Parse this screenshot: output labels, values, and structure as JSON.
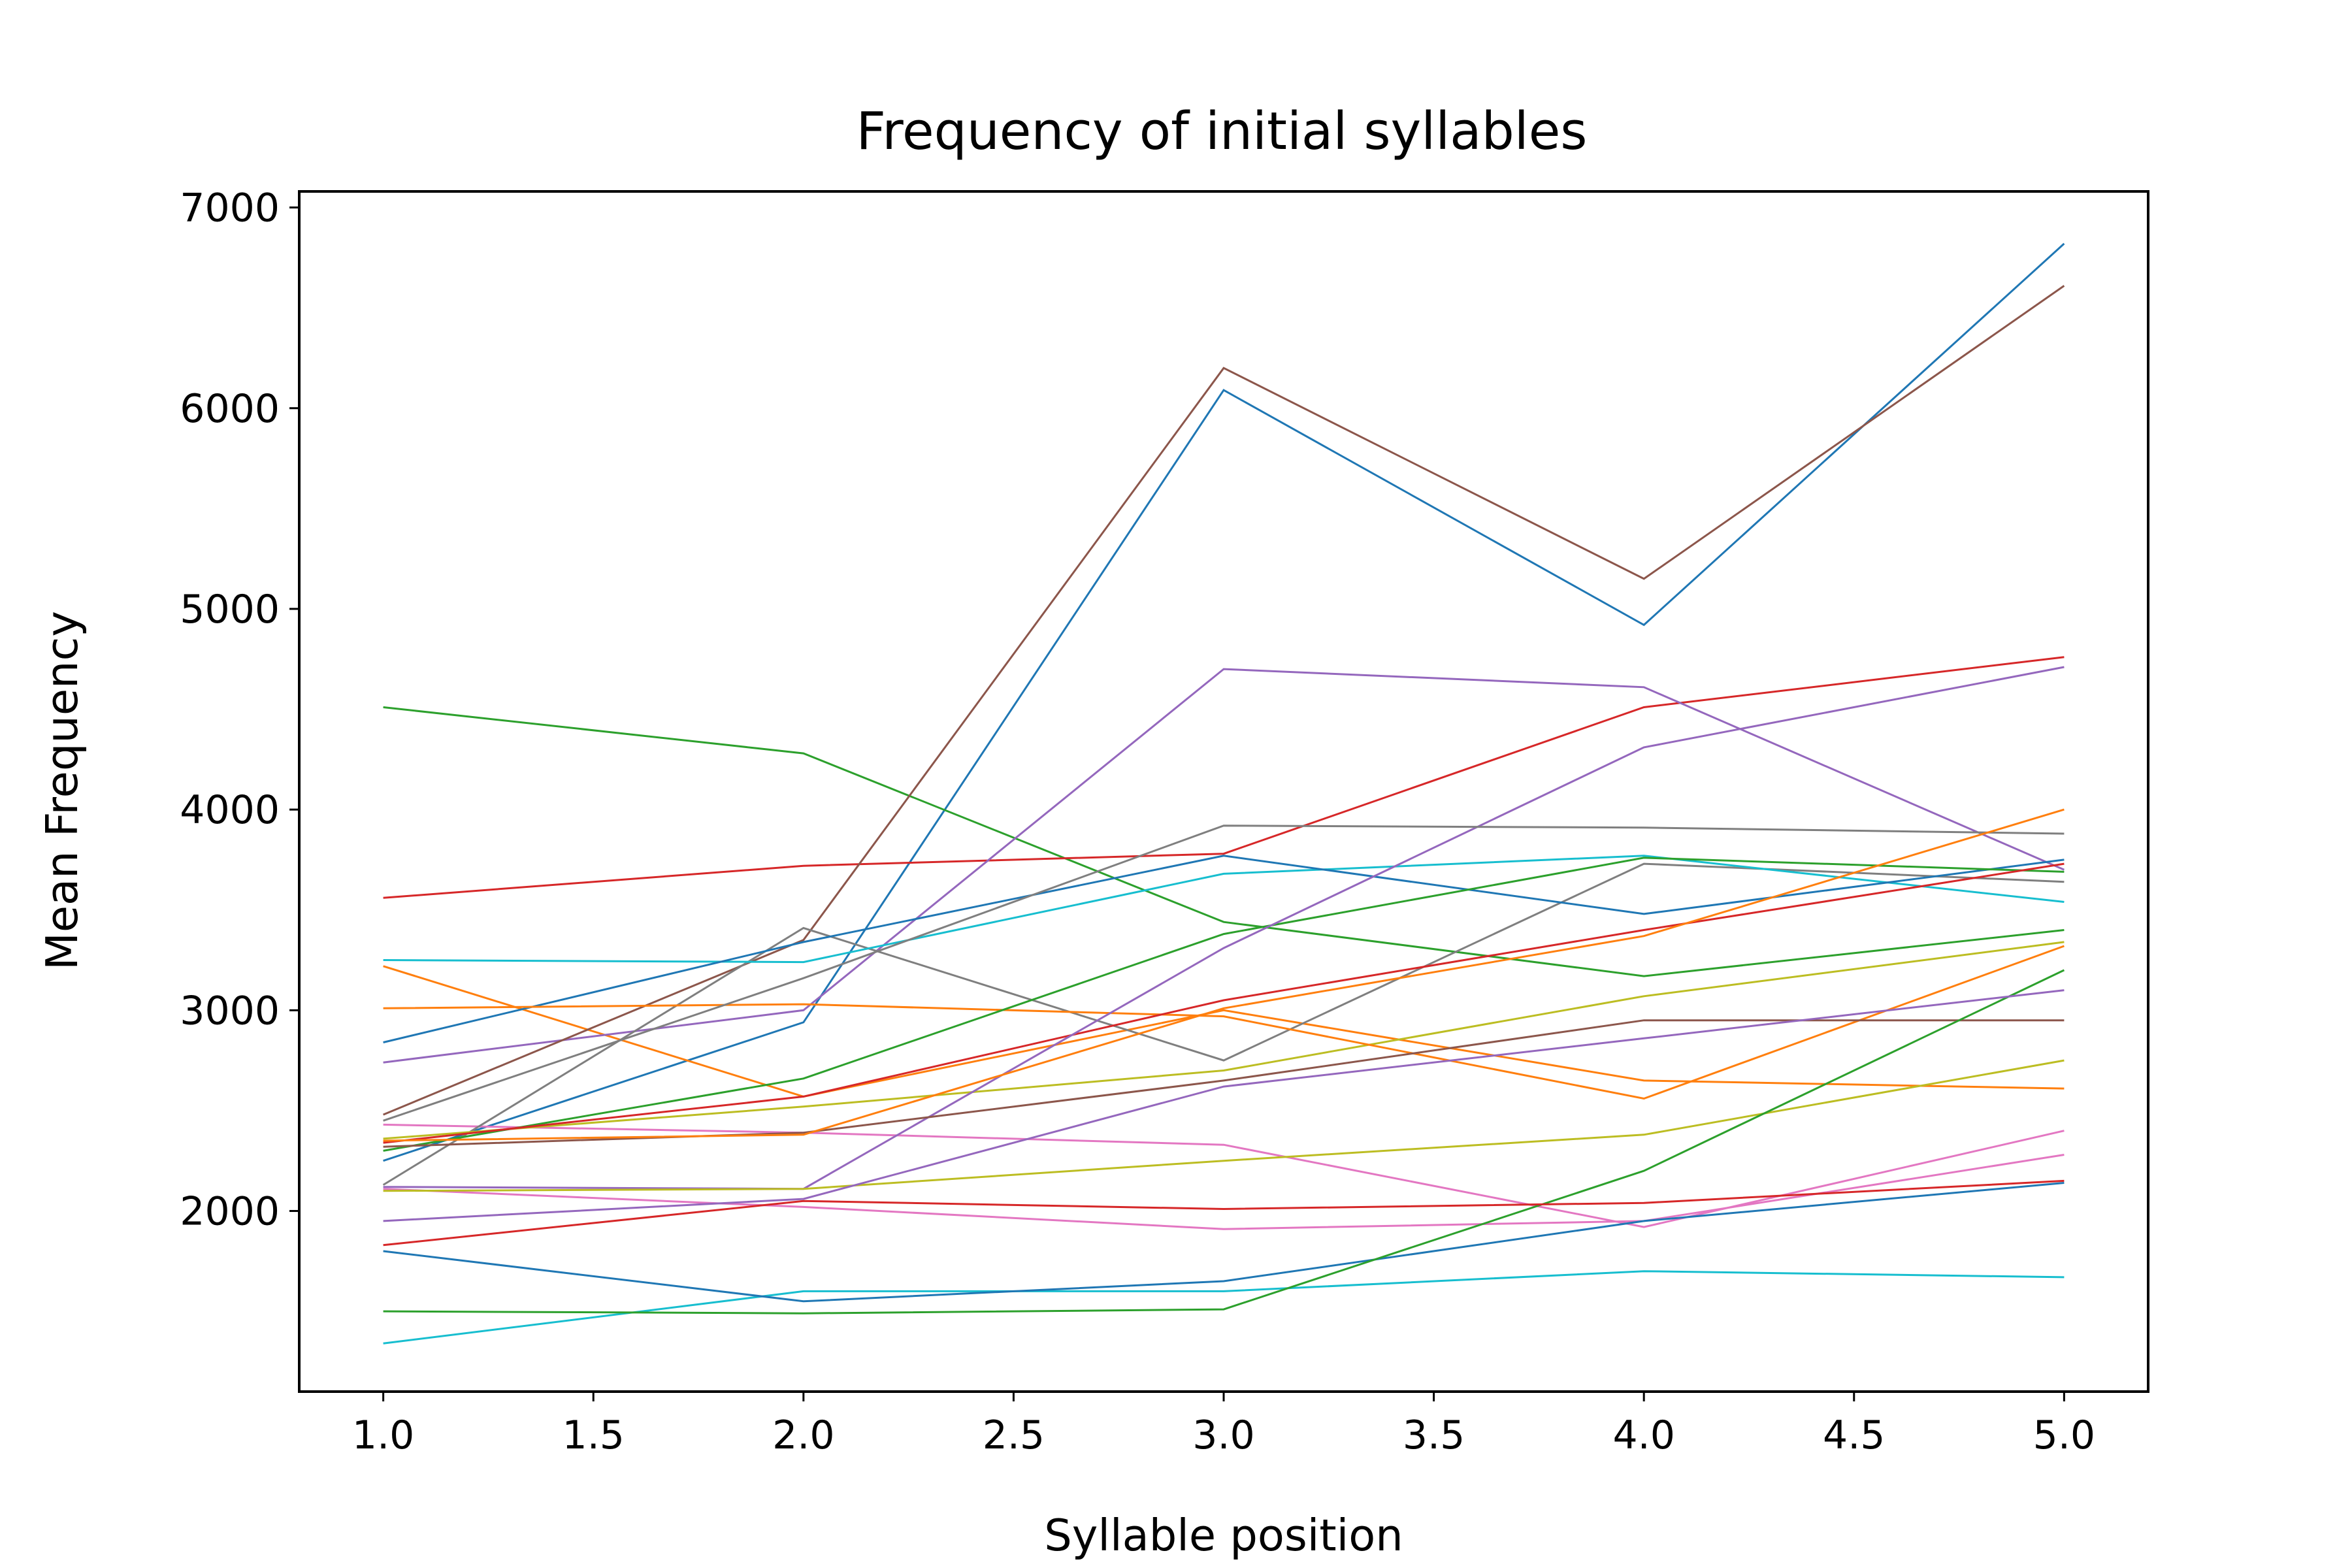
{
  "chart_data": {
    "type": "line",
    "title": "Frequency of initial syllables",
    "xlabel": "Syllable position",
    "ylabel": "Mean Frequency",
    "xlim": [
      0.8,
      5.2
    ],
    "ylim": [
      1100,
      7080
    ],
    "grid": false,
    "x": [
      1,
      2,
      3,
      4,
      5
    ],
    "xticks": [
      1.0,
      1.5,
      2.0,
      2.5,
      3.0,
      3.5,
      4.0,
      4.5,
      5.0
    ],
    "xtick_labels": [
      "1.0",
      "1.5",
      "2.0",
      "2.5",
      "3.0",
      "3.5",
      "4.0",
      "4.5",
      "5.0"
    ],
    "yticks": [
      2000,
      3000,
      4000,
      5000,
      6000,
      7000
    ],
    "ytick_labels": [
      "2000",
      "3000",
      "4000",
      "5000",
      "6000",
      "7000"
    ],
    "series": [
      {
        "color": "#1f77b4",
        "values": [
          2250,
          2940,
          6090,
          4920,
          6820
        ]
      },
      {
        "color": "#ff7f0e",
        "values": [
          3220,
          2570,
          3000,
          2650,
          2610
        ]
      },
      {
        "color": "#2ca02c",
        "values": [
          4510,
          4280,
          3440,
          3170,
          3400
        ]
      },
      {
        "color": "#d62728",
        "values": [
          3560,
          3720,
          3780,
          4510,
          4760
        ]
      },
      {
        "color": "#9467bd",
        "values": [
          2740,
          3000,
          4700,
          4610,
          3700
        ]
      },
      {
        "color": "#8c564b",
        "values": [
          2480,
          3350,
          6200,
          5150,
          6610
        ]
      },
      {
        "color": "#e377c2",
        "values": [
          2430,
          2390,
          2330,
          1920,
          2400
        ]
      },
      {
        "color": "#7f7f7f",
        "values": [
          2130,
          3410,
          2750,
          3730,
          3640
        ]
      },
      {
        "color": "#bcbd22",
        "values": [
          2360,
          2520,
          2700,
          3070,
          3340
        ]
      },
      {
        "color": "#17becf",
        "values": [
          3250,
          3240,
          3680,
          3770,
          3540
        ]
      },
      {
        "color": "#1f77b4",
        "values": [
          2840,
          3340,
          3770,
          3480,
          3750
        ]
      },
      {
        "color": "#ff7f0e",
        "values": [
          3010,
          3030,
          2970,
          2560,
          3320
        ]
      },
      {
        "color": "#2ca02c",
        "values": [
          2300,
          2660,
          3380,
          3760,
          3690
        ]
      },
      {
        "color": "#d62728",
        "values": [
          2340,
          2570,
          3050,
          3400,
          3730
        ]
      },
      {
        "color": "#9467bd",
        "values": [
          2120,
          2110,
          3310,
          4310,
          4710
        ]
      },
      {
        "color": "#8c564b",
        "values": [
          2320,
          2390,
          2650,
          2950,
          2950
        ]
      },
      {
        "color": "#e377c2",
        "values": [
          2110,
          2020,
          1910,
          1950,
          2280
        ]
      },
      {
        "color": "#7f7f7f",
        "values": [
          2450,
          3160,
          3920,
          3910,
          3880
        ]
      },
      {
        "color": "#bcbd22",
        "values": [
          2100,
          2110,
          2250,
          2380,
          2750
        ]
      },
      {
        "color": "#17becf",
        "values": [
          1340,
          1600,
          1600,
          1700,
          1670
        ]
      },
      {
        "color": "#1f77b4",
        "values": [
          1800,
          1550,
          1650,
          1950,
          2140
        ]
      },
      {
        "color": "#ff7f0e",
        "values": [
          2350,
          2380,
          3010,
          3370,
          4000
        ]
      },
      {
        "color": "#2ca02c",
        "values": [
          1500,
          1490,
          1510,
          2200,
          3200
        ]
      },
      {
        "color": "#d62728",
        "values": [
          1830,
          2050,
          2010,
          2040,
          2150
        ]
      },
      {
        "color": "#9467bd",
        "values": [
          1950,
          2060,
          2620,
          2860,
          3100
        ]
      }
    ]
  }
}
